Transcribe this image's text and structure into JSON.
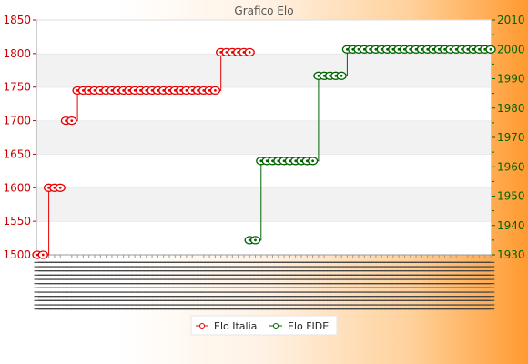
{
  "chart_data": {
    "type": "line",
    "title": "Grafico Elo",
    "xlabel": "",
    "ylabel_left": "",
    "ylabel_right": "",
    "x_tick_note": "dense overlapping date labels (2002–2023) — illegible",
    "left_axis": {
      "ylim": [
        1500,
        1850
      ],
      "ticks": [
        1500,
        1550,
        1600,
        1650,
        1700,
        1750,
        1800,
        1850
      ]
    },
    "right_axis": {
      "ylim": [
        1930,
        2010
      ],
      "ticks": [
        1930,
        1940,
        1950,
        1960,
        1970,
        1980,
        1990,
        2000,
        2010
      ]
    },
    "grid": "horizontal-bands",
    "legend_position": "bottom-center",
    "n_points": 80,
    "series": [
      {
        "name": "Elo Italia",
        "axis": "left",
        "color": "#e60000",
        "segments": [
          {
            "from": 0,
            "to": 1,
            "value": 1500
          },
          {
            "from": 2,
            "to": 4,
            "value": 1600
          },
          {
            "from": 5,
            "to": 6,
            "value": 1700
          },
          {
            "from": 7,
            "to": 31,
            "value": 1745
          },
          {
            "from": 32,
            "to": 37,
            "value": 1802
          }
        ]
      },
      {
        "name": "Elo FIDE",
        "axis": "right",
        "color": "#006400",
        "segments": [
          {
            "from": 37,
            "to": 38,
            "value": 1935
          },
          {
            "from": 39,
            "to": 48,
            "value": 1962
          },
          {
            "from": 49,
            "to": 53,
            "value": 1991
          },
          {
            "from": 54,
            "to": 79,
            "value": 2000
          }
        ]
      }
    ]
  }
}
